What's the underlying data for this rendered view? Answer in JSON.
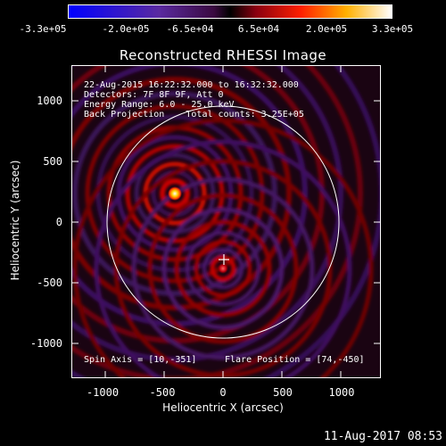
{
  "colorbar": {
    "labels": [
      "-3.3e+05",
      "-2.0e+05",
      "-6.5e+04",
      "6.5e+04",
      "2.0e+05",
      "3.3e+05"
    ]
  },
  "title": "Reconstructed RHESSI Image",
  "info": {
    "line1": "22-Aug-2015 16:22:32.000 to 16:32:32.000",
    "line2": "Detectors: 7F 8F 9F, Att 0",
    "line3": "Energy Range: 6.0 - 25.0 keV",
    "line4": "Back Projection    Total counts: 3.25E+05",
    "spin_axis": "Spin Axis = [10,-351]",
    "flare_position": "Flare Position = [74,-450]"
  },
  "axes": {
    "xlabel": "Heliocentric X (arcsec)",
    "ylabel": "Heliocentric Y (arcsec)",
    "x_ticks": [
      "-1000",
      "-500",
      "0",
      "500",
      "1000"
    ],
    "y_ticks": [
      "1000",
      "500",
      "0",
      "-500",
      "-1000"
    ]
  },
  "footer": {
    "date": "11-Aug-2017 08:53"
  },
  "colors": {
    "background": "#000000",
    "axes": "#ffffff",
    "limb_circle": "#ffffff"
  }
}
